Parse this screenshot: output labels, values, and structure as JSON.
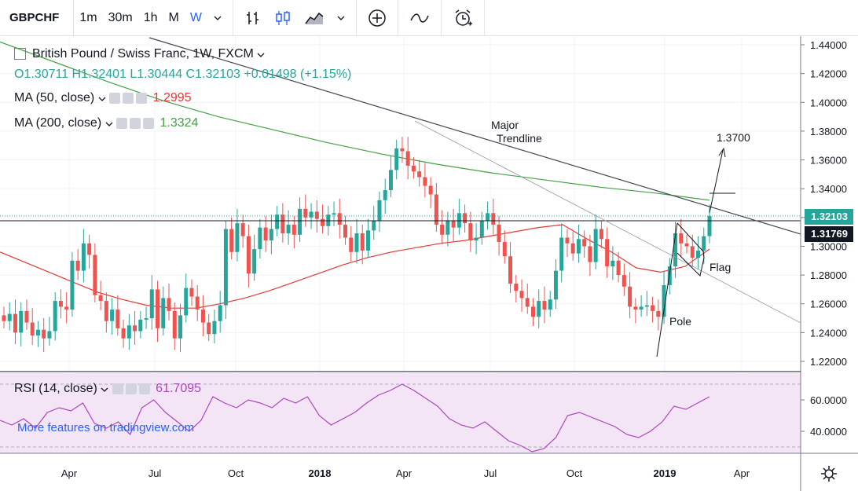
{
  "toolbar": {
    "symbol": "GBPCHF",
    "intervals": [
      "1m",
      "30m",
      "1h",
      "M",
      "W"
    ],
    "active_interval": "W",
    "icons": [
      "chevron-down-icon",
      "bar-chart-icon",
      "candle-chart-icon",
      "area-chart-icon",
      "add-indicator-icon",
      "compare-icon",
      "alert-icon"
    ]
  },
  "legend": {
    "title": "British Pound / Swiss Franc, 1W, FXCM",
    "ohlc": "O1.30711 H1.32401 L1.30444 C1.32103 +0.01498 (+1.15%)",
    "ma50_label": "MA (50, close)",
    "ma50_value": "1.2995",
    "ma200_label": "MA (200, close)",
    "ma200_value": "1.3324",
    "rsi_label": "RSI (14, close)",
    "rsi_value": "61.7095",
    "watermark": "More features on tradingview.com"
  },
  "colors": {
    "up": "#26a69a",
    "down": "#ef5350",
    "ma50": "#e53935",
    "ma200": "#43a047",
    "rsi": "#ab47bc",
    "rsi_bg": "#f3e5f5",
    "current": "#26a69a",
    "reference": "#131722"
  },
  "price_labels": {
    "current": "1.32103",
    "reference": "1.31769"
  },
  "annotations": {
    "major_line1": "Major",
    "major_line2": "Trendline",
    "target": "1.3700",
    "flag": "Flag",
    "pole": "Pole"
  },
  "chart_data": {
    "type": "candlestick",
    "title": "British Pound / Swiss Franc, 1W, FXCM",
    "y_ticks": [
      "1.44000",
      "1.42000",
      "1.40000",
      "1.38000",
      "1.36000",
      "1.34000",
      "1.32000",
      "1.30000",
      "1.28000",
      "1.26000",
      "1.24000",
      "1.22000"
    ],
    "ylim": [
      1.214,
      1.446
    ],
    "x_ticks": [
      "Apr",
      "Jul",
      "Oct",
      "2018",
      "Apr",
      "Jul",
      "Oct",
      "2019",
      "Apr"
    ],
    "closes": [
      1.248,
      1.253,
      1.24,
      1.255,
      1.247,
      1.238,
      1.242,
      1.236,
      1.241,
      1.262,
      1.258,
      1.256,
      1.29,
      1.283,
      1.302,
      1.294,
      1.266,
      1.262,
      1.248,
      1.256,
      1.243,
      1.236,
      1.245,
      1.241,
      1.249,
      1.25,
      1.27,
      1.243,
      1.264,
      1.255,
      1.236,
      1.252,
      1.271,
      1.265,
      1.256,
      1.247,
      1.239,
      1.248,
      1.259,
      1.312,
      1.296,
      1.316,
      1.307,
      1.281,
      1.298,
      1.313,
      1.304,
      1.312,
      1.322,
      1.309,
      1.315,
      1.308,
      1.326,
      1.32,
      1.324,
      1.319,
      1.314,
      1.322,
      1.323,
      1.315,
      1.306,
      1.296,
      1.309,
      1.297,
      1.311,
      1.318,
      1.332,
      1.339,
      1.353,
      1.368,
      1.366,
      1.356,
      1.352,
      1.348,
      1.342,
      1.336,
      1.315,
      1.308,
      1.318,
      1.313,
      1.323,
      1.316,
      1.304,
      1.306,
      1.318,
      1.323,
      1.315,
      1.303,
      1.293,
      1.274,
      1.269,
      1.264,
      1.258,
      1.251,
      1.262,
      1.256,
      1.263,
      1.283,
      1.306,
      1.302,
      1.295,
      1.305,
      1.3,
      1.289,
      1.312,
      1.305,
      1.286,
      1.29,
      1.28,
      1.272,
      1.258,
      1.256,
      1.258,
      1.259,
      1.255,
      1.251,
      1.273,
      1.286,
      1.309,
      1.302,
      1.3,
      1.292,
      1.297,
      1.307,
      1.321
    ],
    "ma50": [
      1.296,
      1.289,
      1.282,
      1.275,
      1.268,
      1.263,
      1.259,
      1.257,
      1.257,
      1.26,
      1.264,
      1.269,
      1.275,
      1.281,
      1.287,
      1.292,
      1.296,
      1.299,
      1.302,
      1.304,
      1.307,
      1.31,
      1.313,
      1.315,
      1.305,
      1.296,
      1.285,
      1.282,
      1.286,
      1.298
    ],
    "ma200": [
      1.442,
      1.428,
      1.414,
      1.401,
      1.39,
      1.381,
      1.372,
      1.364,
      1.357,
      1.351,
      1.346,
      1.341,
      1.337,
      1.332
    ],
    "rsi_ylim": [
      26,
      76
    ],
    "rsi_ticks": [
      "60.0000",
      "40.0000"
    ],
    "rsi": [
      47,
      44,
      48,
      42,
      52,
      55,
      53,
      58,
      45,
      42,
      46,
      38,
      55,
      60,
      52,
      46,
      40,
      47,
      62,
      58,
      55,
      60,
      58,
      55,
      61,
      58,
      62,
      50,
      44,
      48,
      52,
      58,
      63,
      66,
      70,
      66,
      61,
      56,
      48,
      44,
      42,
      46,
      40,
      34,
      31,
      27,
      29,
      36,
      50,
      52,
      49,
      46,
      43,
      38,
      36,
      40,
      46,
      56,
      54,
      58,
      62
    ]
  }
}
